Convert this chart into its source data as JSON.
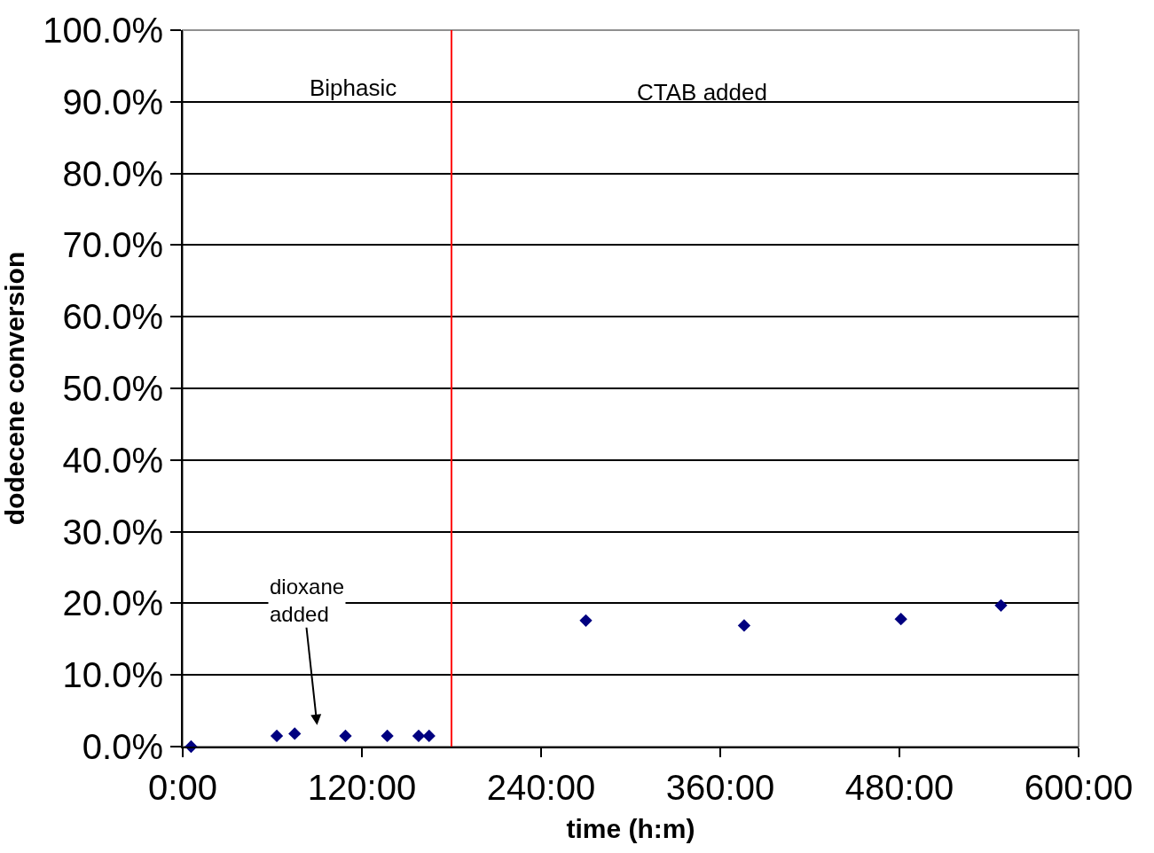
{
  "chart_data": {
    "type": "scatter",
    "xlabel": "time (h:m)",
    "ylabel": "dodecene conversion",
    "x": [
      5.6,
      63,
      75,
      109,
      137,
      158,
      165,
      270,
      376,
      481,
      548
    ],
    "series": [
      {
        "color": "#000080",
        "values": [
          0.0,
          0.015,
          0.018,
          0.015,
          0.015,
          0.015,
          0.015,
          0.176,
          0.169,
          0.178,
          0.197
        ]
      }
    ],
    "marker": "diamond",
    "xlim": [
      0,
      600
    ],
    "xticks": [
      {
        "value": 0,
        "label": "0:00"
      },
      {
        "value": 120,
        "label": "120:00"
      },
      {
        "value": 240,
        "label": "240:00"
      },
      {
        "value": 360,
        "label": "360:00"
      },
      {
        "value": 480,
        "label": "480:00"
      },
      {
        "value": 600,
        "label": "600:00"
      }
    ],
    "ylim": [
      0,
      1
    ],
    "yticks": [
      {
        "value": 0,
        "label": "0.0%"
      },
      {
        "value": 0.1,
        "label": "10.0%"
      },
      {
        "value": 0.2,
        "label": "20.0%"
      },
      {
        "value": 0.3,
        "label": "30.0%"
      },
      {
        "value": 0.4,
        "label": "40.0%"
      },
      {
        "value": 0.5,
        "label": "50.0%"
      },
      {
        "value": 0.6,
        "label": "60.0%"
      },
      {
        "value": 0.7,
        "label": "70.0%"
      },
      {
        "value": 0.8,
        "label": "80.0%"
      },
      {
        "value": 0.9,
        "label": "90.0%"
      },
      {
        "value": 1.0,
        "label": "100.0%"
      }
    ],
    "grid": "y",
    "ref_lines": [
      {
        "axis": "x",
        "value": 180,
        "color": "#ff0000"
      }
    ],
    "annotations": [
      "Biphasic",
      "CTAB added",
      "dioxane added"
    ]
  }
}
